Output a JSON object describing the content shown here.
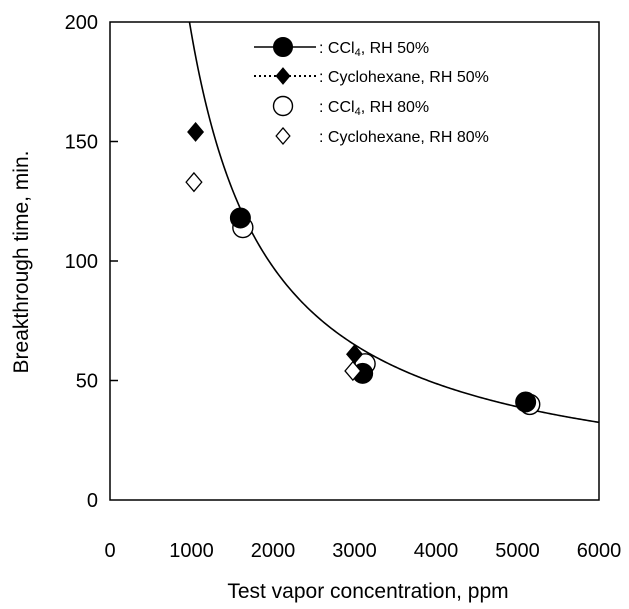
{
  "chart_data": {
    "type": "scatter",
    "xlabel": "Test vapor concentration, ppm",
    "ylabel": "Breakthrough time, min.",
    "xlim": [
      0,
      6000
    ],
    "ylim": [
      0,
      200
    ],
    "xticks": [
      "0",
      "1000",
      "2000",
      "3000",
      "4000",
      "5000",
      "6000"
    ],
    "yticks": [
      "0",
      "50",
      "100",
      "150",
      "200"
    ],
    "grid": false,
    "legend_position": "top-right",
    "series": [
      {
        "name": "CCl4, RH 50%",
        "legend_prefix": ": CCl",
        "legend_sub": "4",
        "legend_suffix": ", RH 50%",
        "marker": "circle",
        "filled": true,
        "line": "solid",
        "x": [
          1600,
          3100,
          5100
        ],
        "y": [
          118,
          53,
          41
        ]
      },
      {
        "name": "Cyclohexane, RH 50%",
        "legend_prefix": ": Cyclohexane, RH 50%",
        "legend_sub": "",
        "legend_suffix": "",
        "marker": "diamond",
        "filled": true,
        "line": "dotted",
        "x": [
          1050,
          3000
        ],
        "y": [
          154,
          61
        ]
      },
      {
        "name": "CCl4, RH 80%",
        "legend_prefix": ": CCl",
        "legend_sub": "4",
        "legend_suffix": ", RH 80%",
        "marker": "circle",
        "filled": false,
        "line": "none",
        "x": [
          1630,
          3130,
          5150
        ],
        "y": [
          114,
          57,
          40
        ]
      },
      {
        "name": "Cyclohexane, RH 80%",
        "legend_prefix": ": Cyclohexane, RH 80%",
        "legend_sub": "",
        "legend_suffix": "",
        "marker": "diamond",
        "filled": false,
        "line": "none",
        "x": [
          1030,
          2980
        ],
        "y": [
          133,
          54
        ]
      }
    ],
    "fit_curves": [
      {
        "series": "CCl4, RH 50%",
        "style": "solid",
        "model": "y = a / x",
        "a": 195000,
        "x_start": 975
      },
      {
        "series": "Cyclohexane, RH 50%",
        "style": "dotted",
        "model": "y = a / x^b",
        "a": 1280000,
        "b": 1.08,
        "x_start": 820,
        "x_end": 3150
      }
    ],
    "colors": {
      "marker": "#000000",
      "line": "#000000",
      "background": "#ffffff"
    }
  }
}
